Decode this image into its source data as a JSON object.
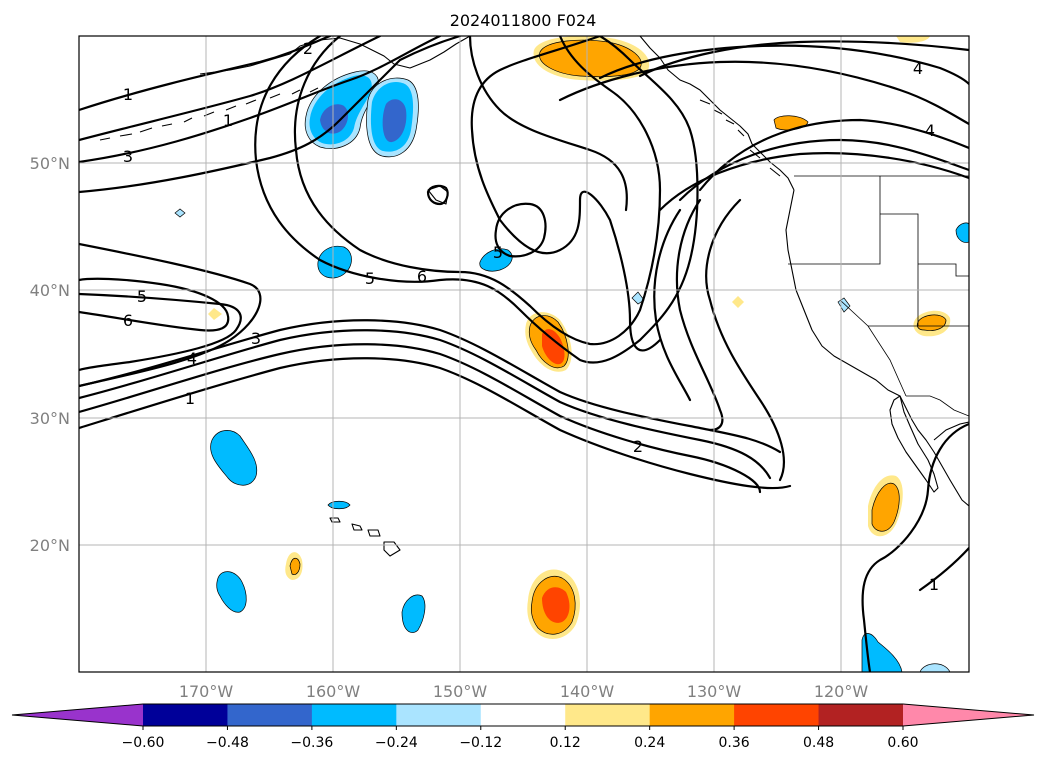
{
  "title": "2024011800 F024",
  "map": {
    "lat_labels": [
      "50°N",
      "40°N",
      "30°N",
      "20°N"
    ],
    "lon_labels": [
      "170°W",
      "160°W",
      "150°W",
      "140°W",
      "130°W",
      "120°W"
    ],
    "contour_labels": [
      "1",
      "3",
      "5",
      "6",
      "4",
      "3",
      "1",
      "5",
      "6",
      "5",
      "2",
      "4",
      "4",
      "1",
      "2",
      "1"
    ]
  },
  "colorbar": {
    "tick_labels": [
      "−0.60",
      "−0.48",
      "−0.36",
      "−0.24",
      "−0.12",
      "0.12",
      "0.24",
      "0.36",
      "0.48",
      "0.60"
    ],
    "colors": [
      "#9933cc",
      "#000099",
      "#3366cc",
      "#00bbff",
      "#aae4ff",
      "#ffffff",
      "#ffe88a",
      "#ffa500",
      "#ff4400",
      "#b22222",
      "#ff88aa"
    ]
  },
  "chart_data": {
    "type": "heatmap",
    "title": "2024011800 F024",
    "lon_range": [
      -180,
      -110
    ],
    "lat_range": [
      10,
      60
    ],
    "levels": [
      -0.6,
      -0.48,
      -0.36,
      -0.24,
      -0.12,
      0.12,
      0.24,
      0.36,
      0.48,
      0.6
    ],
    "colormap": [
      "#9933cc",
      "#000099",
      "#3366cc",
      "#00bbff",
      "#aae4ff",
      "#ffffff",
      "#ffe88a",
      "#ffa500",
      "#ff4400",
      "#b22222",
      "#ff88aa"
    ],
    "grid": true,
    "colorbar_position": "bottom",
    "contour_levels": [
      1,
      2,
      3,
      4,
      5,
      6,
      7
    ]
  }
}
